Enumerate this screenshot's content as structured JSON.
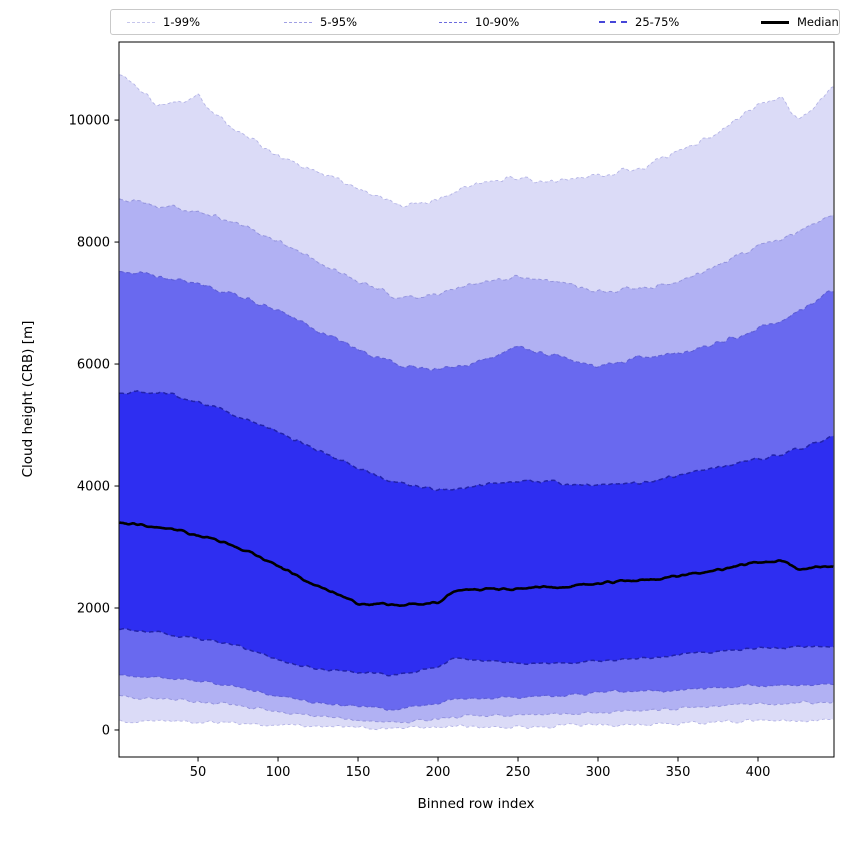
{
  "legend": {
    "items": [
      {
        "label": "1-99%",
        "color": "#c6c6ec",
        "dash": "dashed",
        "thickness": 1.2
      },
      {
        "label": "5-95%",
        "color": "#a0a0e4",
        "dash": "dashed",
        "thickness": 1.2
      },
      {
        "label": "10-90%",
        "color": "#6b6bde",
        "dash": "dashed",
        "thickness": 1.5
      },
      {
        "label": "25-75%",
        "color": "#4646d8",
        "dash": "dashed",
        "thickness": 2.2
      },
      {
        "label": "Median",
        "color": "#000000",
        "dash": "solid",
        "thickness": 3
      }
    ],
    "entry_offsets": [
      16,
      173,
      328,
      488,
      650
    ]
  },
  "chart_data": {
    "type": "area",
    "subtype": "percentile-fan",
    "title": "",
    "xlabel": "Binned row index",
    "ylabel": "Cloud height (CRB) [m]",
    "xlim": [
      0.6,
      447.5
    ],
    "ylim": [
      -443,
      11280
    ],
    "xticks": [
      50,
      100,
      150,
      200,
      250,
      300,
      350,
      400
    ],
    "yticks": [
      0,
      2000,
      4000,
      6000,
      8000,
      10000
    ],
    "grid": false,
    "legend_position": "top",
    "x_sample": [
      1,
      25,
      50,
      75,
      100,
      125,
      150,
      175,
      200,
      210,
      225,
      250,
      275,
      300,
      325,
      350,
      375,
      400,
      415,
      425,
      447
    ],
    "percentiles": {
      "p1": [
        150,
        140,
        130,
        110,
        80,
        60,
        40,
        30,
        45,
        55,
        60,
        60,
        70,
        70,
        90,
        110,
        130,
        150,
        155,
        160,
        170
      ],
      "p5": [
        550,
        520,
        470,
        400,
        300,
        220,
        170,
        130,
        190,
        210,
        230,
        250,
        260,
        290,
        320,
        350,
        400,
        430,
        435,
        440,
        450
      ],
      "p10": [
        900,
        870,
        800,
        700,
        550,
        450,
        380,
        340,
        450,
        500,
        520,
        540,
        560,
        620,
        640,
        650,
        700,
        720,
        730,
        740,
        756
      ],
      "p25": [
        1650,
        1600,
        1500,
        1380,
        1150,
        1000,
        950,
        900,
        1050,
        1190,
        1150,
        1100,
        1100,
        1125,
        1180,
        1230,
        1290,
        1345,
        1350,
        1360,
        1380
      ],
      "median": [
        3400,
        3340,
        3200,
        3000,
        2700,
        2350,
        2080,
        2050,
        2100,
        2290,
        2300,
        2320,
        2350,
        2400,
        2450,
        2520,
        2620,
        2740,
        2770,
        2650,
        2690
      ],
      "p75": [
        5520,
        5560,
        5400,
        5150,
        4900,
        4600,
        4300,
        4050,
        3950,
        3960,
        4000,
        4100,
        4050,
        4000,
        4050,
        4170,
        4300,
        4450,
        4530,
        4620,
        4820
      ],
      "p90": [
        7540,
        7450,
        7300,
        7150,
        6900,
        6550,
        6250,
        5980,
        5920,
        5950,
        6050,
        6250,
        6150,
        5930,
        6100,
        6170,
        6350,
        6600,
        6700,
        6850,
        7220
      ],
      "p95": [
        8690,
        8600,
        8500,
        8300,
        8000,
        7700,
        7350,
        7100,
        7150,
        7200,
        7300,
        7450,
        7350,
        7150,
        7250,
        7350,
        7600,
        7950,
        8050,
        8150,
        8450
      ],
      "p99": [
        10780,
        10250,
        10400,
        9800,
        9420,
        9150,
        8900,
        8600,
        8700,
        8800,
        8950,
        9050,
        9000,
        9100,
        9200,
        9500,
        9800,
        10250,
        10350,
        9950,
        10600
      ]
    },
    "bands": [
      {
        "label": "1-99%",
        "lower": "p1",
        "upper": "p99",
        "fill": "#dbdbf7",
        "edge": "#b4b4e6",
        "edge_width": 0.9,
        "edge_dash": "3 2.6",
        "noise": 40
      },
      {
        "label": "5-95%",
        "lower": "p5",
        "upper": "p95",
        "fill": "#b1b1f3",
        "edge": "#9494dd",
        "edge_width": 1.0,
        "edge_dash": "3.5 2.8",
        "noise": 34
      },
      {
        "label": "10-90%",
        "lower": "p10",
        "upper": "p90",
        "fill": "#6969ef",
        "edge": "#5e5ed6",
        "edge_width": 1.15,
        "edge_dash": "4 2.8",
        "noise": 30
      },
      {
        "label": "25-75%",
        "lower": "p25",
        "upper": "p75",
        "fill": "#2e2ef1",
        "edge": "#2222aa",
        "edge_width": 1.5,
        "edge_dash": "4.5 3",
        "noise": 26
      }
    ],
    "median_style": {
      "color": "#000000",
      "width": 2.6,
      "noise": 20
    }
  }
}
